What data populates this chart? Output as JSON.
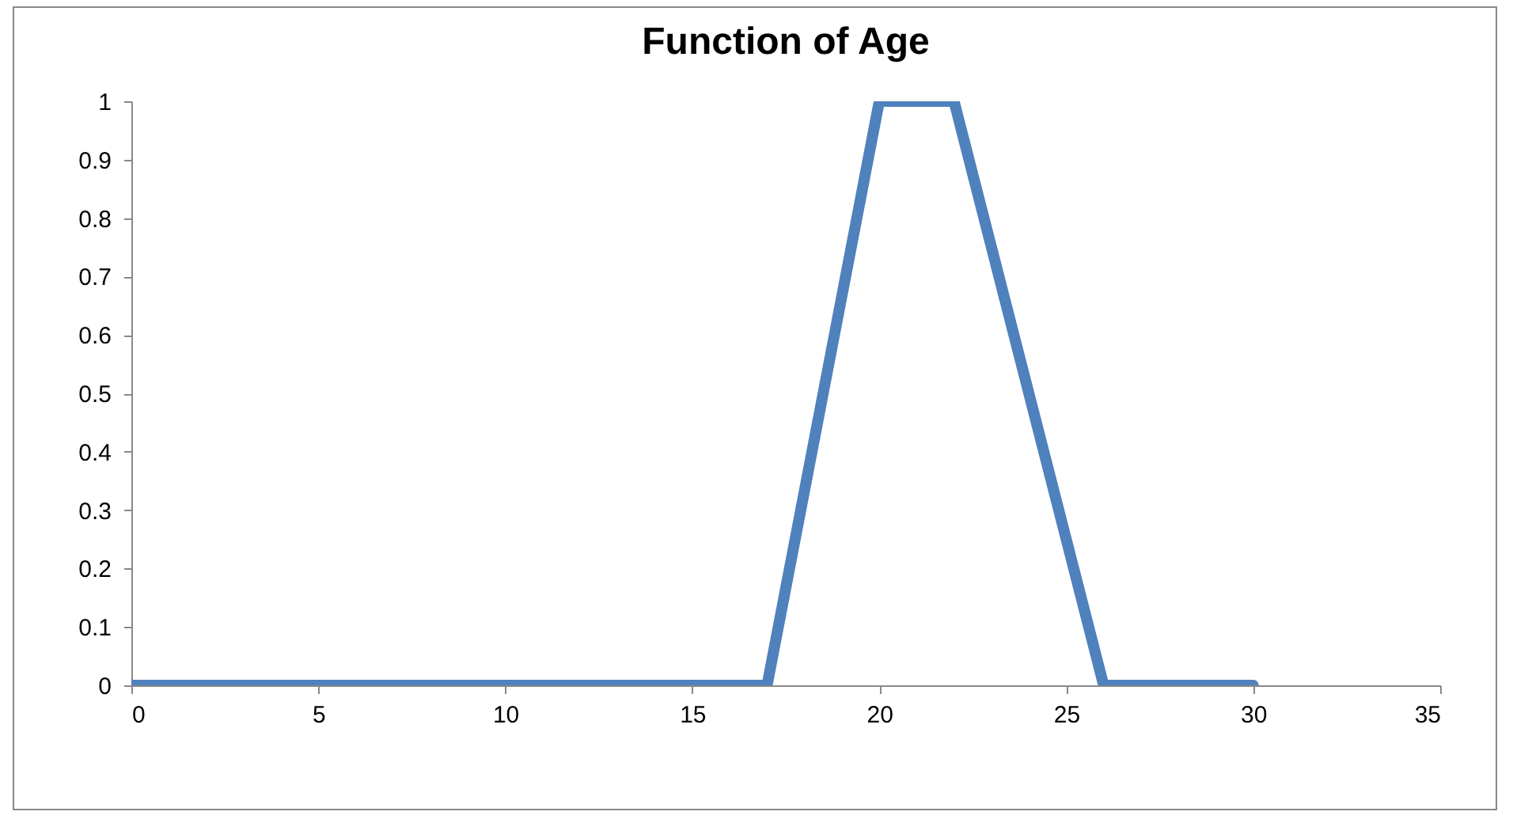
{
  "chart_data": {
    "type": "line",
    "title": "Function of Age",
    "x": [
      0,
      5,
      10,
      15,
      16,
      17,
      20,
      21,
      22,
      26,
      27,
      28,
      29,
      30
    ],
    "series": [
      {
        "color": "#4f81bd",
        "values": [
          0,
          0,
          0,
          0,
          0,
          0,
          1,
          1,
          1,
          0,
          0,
          0,
          0,
          0
        ]
      }
    ],
    "xlim": [
      0,
      35
    ],
    "xticks": [
      0,
      5,
      10,
      15,
      20,
      25,
      30,
      35
    ],
    "ylim": [
      0,
      1
    ],
    "yticks": [
      0,
      0.1,
      0.2,
      0.3,
      0.4,
      0.5,
      0.6,
      0.7,
      0.8,
      0.9,
      1
    ],
    "grid": false,
    "line_style": "solid"
  }
}
